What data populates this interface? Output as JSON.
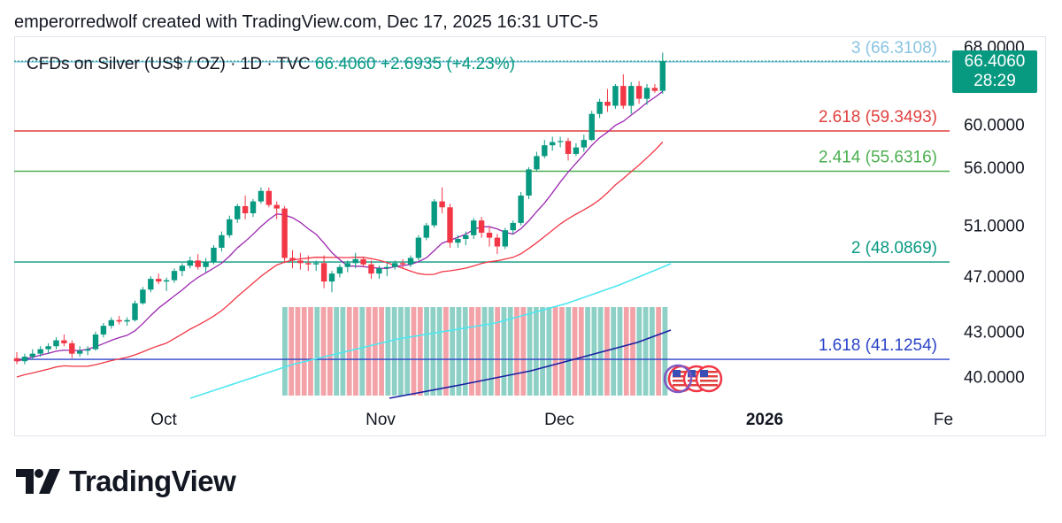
{
  "header": {
    "text": "emperorredwolf created with TradingView.com, Dec 17, 2025 16:31 UTC-5"
  },
  "symbol": {
    "name": "CFDs on Silver (US$ / OZ) · 1D · TVC",
    "price": "66.4060",
    "change": "+2.6935 (+4.23%)"
  },
  "price_box": {
    "price": "66.4060",
    "countdown": "28:29"
  },
  "brand": {
    "name": "TradingView"
  },
  "colors": {
    "up": "#089981",
    "down": "#f23645",
    "fib_3": "#89c4e1",
    "fib_2618": "#e0413f",
    "fib_2414": "#4caf50",
    "fib_2": "#089981",
    "fib_1618": "#2b44c8"
  },
  "chart_data": {
    "type": "candlestick",
    "title": "CFDs on Silver (US$ / OZ) · 1D · TVC",
    "x_labels": [
      "Oct",
      "Nov",
      "Dec",
      "2026",
      "Fe"
    ],
    "y_ticks": [
      "68.0000",
      "60.0000",
      "56.0000",
      "51.0000",
      "47.0000",
      "43.0000",
      "40.0000"
    ],
    "y_axis": "log",
    "ylim": [
      38.8,
      69.0
    ],
    "fib_levels": [
      {
        "label": "3 (66.3108)",
        "value": 66.3108,
        "color": "#89c4e1"
      },
      {
        "label": "2.618 (59.3493)",
        "value": 59.3493,
        "color": "#e0413f"
      },
      {
        "label": "2.414 (55.6316)",
        "value": 55.6316,
        "color": "#4caf50"
      },
      {
        "label": "2 (48.0869)",
        "value": 48.0869,
        "color": "#089981"
      },
      {
        "label": "1.618 (41.1254)",
        "value": 41.1254,
        "color": "#2b44c8"
      }
    ],
    "last_price": 66.406,
    "candles": [
      {
        "o": 41.2,
        "h": 41.6,
        "l": 40.8,
        "c": 41.0
      },
      {
        "o": 41.0,
        "h": 41.5,
        "l": 40.8,
        "c": 41.3
      },
      {
        "o": 41.3,
        "h": 41.8,
        "l": 41.1,
        "c": 41.5
      },
      {
        "o": 41.5,
        "h": 42.0,
        "l": 41.3,
        "c": 41.8
      },
      {
        "o": 41.8,
        "h": 42.2,
        "l": 41.5,
        "c": 42.0
      },
      {
        "o": 42.0,
        "h": 42.6,
        "l": 41.8,
        "c": 42.4
      },
      {
        "o": 42.4,
        "h": 42.8,
        "l": 42.0,
        "c": 42.2
      },
      {
        "o": 42.2,
        "h": 42.4,
        "l": 41.2,
        "c": 41.5
      },
      {
        "o": 41.5,
        "h": 42.0,
        "l": 41.3,
        "c": 41.7
      },
      {
        "o": 41.7,
        "h": 42.0,
        "l": 41.4,
        "c": 41.8
      },
      {
        "o": 41.8,
        "h": 43.0,
        "l": 41.7,
        "c": 42.8
      },
      {
        "o": 42.8,
        "h": 43.6,
        "l": 42.6,
        "c": 43.4
      },
      {
        "o": 43.4,
        "h": 44.0,
        "l": 43.2,
        "c": 43.8
      },
      {
        "o": 43.8,
        "h": 44.1,
        "l": 43.5,
        "c": 43.7
      },
      {
        "o": 43.7,
        "h": 44.0,
        "l": 43.4,
        "c": 43.8
      },
      {
        "o": 43.8,
        "h": 45.2,
        "l": 43.7,
        "c": 45.0
      },
      {
        "o": 45.0,
        "h": 46.2,
        "l": 44.9,
        "c": 46.0
      },
      {
        "o": 46.0,
        "h": 47.0,
        "l": 45.8,
        "c": 46.8
      },
      {
        "o": 46.8,
        "h": 47.2,
        "l": 46.4,
        "c": 46.6
      },
      {
        "o": 46.6,
        "h": 46.9,
        "l": 45.9,
        "c": 46.7
      },
      {
        "o": 46.7,
        "h": 47.6,
        "l": 46.5,
        "c": 47.4
      },
      {
        "o": 47.4,
        "h": 48.0,
        "l": 47.0,
        "c": 47.8
      },
      {
        "o": 47.8,
        "h": 48.5,
        "l": 47.6,
        "c": 48.2
      },
      {
        "o": 48.2,
        "h": 48.7,
        "l": 47.5,
        "c": 47.7
      },
      {
        "o": 47.7,
        "h": 48.4,
        "l": 47.3,
        "c": 48.1
      },
      {
        "o": 48.1,
        "h": 49.4,
        "l": 47.9,
        "c": 49.2
      },
      {
        "o": 49.2,
        "h": 50.5,
        "l": 48.9,
        "c": 50.2
      },
      {
        "o": 50.2,
        "h": 51.8,
        "l": 50.0,
        "c": 51.5
      },
      {
        "o": 51.5,
        "h": 52.8,
        "l": 51.2,
        "c": 52.6
      },
      {
        "o": 52.6,
        "h": 53.5,
        "l": 51.5,
        "c": 52.0
      },
      {
        "o": 52.0,
        "h": 53.2,
        "l": 51.7,
        "c": 53.0
      },
      {
        "o": 53.0,
        "h": 54.2,
        "l": 52.8,
        "c": 53.9
      },
      {
        "o": 53.9,
        "h": 54.2,
        "l": 52.5,
        "c": 52.7
      },
      {
        "o": 52.7,
        "h": 53.0,
        "l": 51.5,
        "c": 52.4
      },
      {
        "o": 52.4,
        "h": 52.6,
        "l": 48.0,
        "c": 48.4
      },
      {
        "o": 48.4,
        "h": 49.0,
        "l": 47.6,
        "c": 48.2
      },
      {
        "o": 48.2,
        "h": 48.8,
        "l": 47.5,
        "c": 48.0
      },
      {
        "o": 48.0,
        "h": 48.6,
        "l": 47.4,
        "c": 47.9
      },
      {
        "o": 47.9,
        "h": 48.2,
        "l": 47.4,
        "c": 48.0
      },
      {
        "o": 48.0,
        "h": 48.6,
        "l": 46.1,
        "c": 46.6
      },
      {
        "o": 46.6,
        "h": 47.4,
        "l": 45.8,
        "c": 47.2
      },
      {
        "o": 47.2,
        "h": 47.9,
        "l": 46.9,
        "c": 47.7
      },
      {
        "o": 47.7,
        "h": 48.2,
        "l": 47.3,
        "c": 48.0
      },
      {
        "o": 48.0,
        "h": 48.8,
        "l": 47.6,
        "c": 48.3
      },
      {
        "o": 48.3,
        "h": 48.5,
        "l": 47.7,
        "c": 47.9
      },
      {
        "o": 47.9,
        "h": 48.2,
        "l": 46.8,
        "c": 47.2
      },
      {
        "o": 47.2,
        "h": 47.8,
        "l": 46.8,
        "c": 47.6
      },
      {
        "o": 47.6,
        "h": 48.0,
        "l": 47.0,
        "c": 47.7
      },
      {
        "o": 47.7,
        "h": 48.2,
        "l": 47.5,
        "c": 48.0
      },
      {
        "o": 48.0,
        "h": 48.3,
        "l": 47.6,
        "c": 47.9
      },
      {
        "o": 47.9,
        "h": 48.6,
        "l": 47.7,
        "c": 48.4
      },
      {
        "o": 48.4,
        "h": 50.2,
        "l": 48.2,
        "c": 50.0
      },
      {
        "o": 50.0,
        "h": 51.2,
        "l": 49.8,
        "c": 51.0
      },
      {
        "o": 51.0,
        "h": 53.2,
        "l": 50.8,
        "c": 53.0
      },
      {
        "o": 53.0,
        "h": 54.2,
        "l": 52.0,
        "c": 52.5
      },
      {
        "o": 52.5,
        "h": 52.8,
        "l": 49.2,
        "c": 49.6
      },
      {
        "o": 49.6,
        "h": 50.2,
        "l": 49.2,
        "c": 49.9
      },
      {
        "o": 49.9,
        "h": 50.5,
        "l": 49.4,
        "c": 50.2
      },
      {
        "o": 50.2,
        "h": 51.6,
        "l": 49.9,
        "c": 51.4
      },
      {
        "o": 51.4,
        "h": 51.7,
        "l": 50.0,
        "c": 50.4
      },
      {
        "o": 50.4,
        "h": 50.9,
        "l": 49.3,
        "c": 50.0
      },
      {
        "o": 50.0,
        "h": 50.3,
        "l": 48.7,
        "c": 49.3
      },
      {
        "o": 49.3,
        "h": 50.8,
        "l": 49.1,
        "c": 50.6
      },
      {
        "o": 50.6,
        "h": 51.4,
        "l": 50.3,
        "c": 51.2
      },
      {
        "o": 51.2,
        "h": 53.8,
        "l": 51.0,
        "c": 53.5
      },
      {
        "o": 53.5,
        "h": 56.0,
        "l": 53.2,
        "c": 55.8
      },
      {
        "o": 55.8,
        "h": 57.4,
        "l": 55.6,
        "c": 57.0
      },
      {
        "o": 57.0,
        "h": 58.5,
        "l": 56.8,
        "c": 58.0
      },
      {
        "o": 58.0,
        "h": 58.8,
        "l": 57.5,
        "c": 58.3
      },
      {
        "o": 58.3,
        "h": 58.8,
        "l": 57.8,
        "c": 58.4
      },
      {
        "o": 58.4,
        "h": 58.7,
        "l": 56.6,
        "c": 57.2
      },
      {
        "o": 57.2,
        "h": 58.2,
        "l": 57.0,
        "c": 57.8
      },
      {
        "o": 57.8,
        "h": 59.0,
        "l": 57.4,
        "c": 58.5
      },
      {
        "o": 58.5,
        "h": 61.3,
        "l": 58.4,
        "c": 61.0
      },
      {
        "o": 61.0,
        "h": 62.5,
        "l": 60.6,
        "c": 62.2
      },
      {
        "o": 62.2,
        "h": 63.5,
        "l": 61.2,
        "c": 61.8
      },
      {
        "o": 61.8,
        "h": 64.0,
        "l": 61.5,
        "c": 63.8
      },
      {
        "o": 63.8,
        "h": 65.0,
        "l": 61.5,
        "c": 61.8
      },
      {
        "o": 61.8,
        "h": 64.2,
        "l": 61.0,
        "c": 63.8
      },
      {
        "o": 63.8,
        "h": 64.3,
        "l": 62.0,
        "c": 62.5
      },
      {
        "o": 62.5,
        "h": 64.0,
        "l": 61.9,
        "c": 63.6
      },
      {
        "o": 63.6,
        "h": 64.0,
        "l": 63.1,
        "c": 63.3
      },
      {
        "o": 63.3,
        "h": 67.3,
        "l": 63.0,
        "c": 66.4
      }
    ],
    "indicators": [
      {
        "kind": "line",
        "color": "#9c27b0"
      },
      {
        "kind": "line",
        "color": "#f23645"
      },
      {
        "kind": "line",
        "color": "#4de7f0"
      },
      {
        "kind": "line",
        "color": "#1a1fa3"
      },
      {
        "kind": "volume-profile",
        "color": "#089981"
      }
    ]
  }
}
